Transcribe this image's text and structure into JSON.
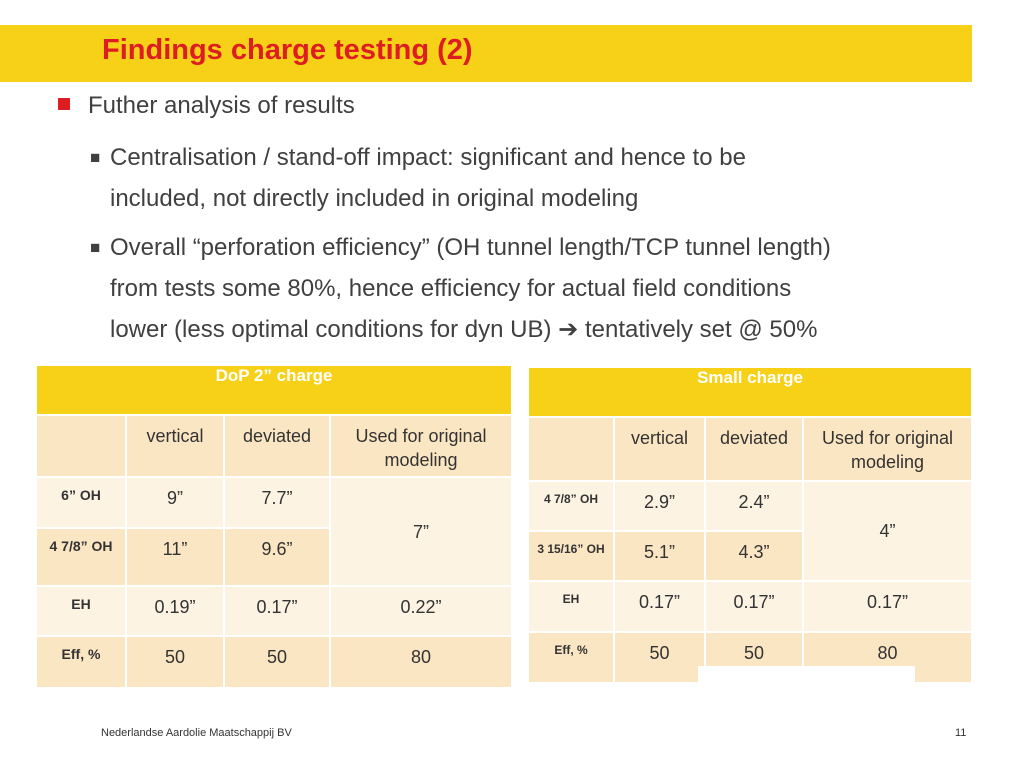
{
  "title": "Findings charge testing (2)",
  "bullet1": "Futher analysis of results",
  "sub_bullets": [
    "Centralisation / stand-off impact: significant and hence to be\nincluded, not directly included in original modeling",
    "Overall “perforation efficiency” (OH tunnel length/TCP tunnel length)\nfrom tests some 80%, hence efficiency for actual field conditions\nlower (less optimal conditions for dyn UB) ➔ tentatively set @ 50%"
  ],
  "bullet_marker": "■",
  "tables": [
    {
      "heading": "DoP 2” charge",
      "columns": [
        "",
        "vertical",
        "deviated",
        "Used for original modeling"
      ],
      "rows": [
        {
          "label": "6” OH",
          "vertical": "9”",
          "deviated": "7.7”"
        },
        {
          "label": "4 7/8” OH",
          "vertical": "11”",
          "deviated": "9.6”"
        },
        {
          "label": "EH",
          "vertical": "0.19”",
          "deviated": "0.17”",
          "original": "0.22”"
        },
        {
          "label": "Eff, %",
          "vertical": "50",
          "deviated": "50",
          "original": "80"
        }
      ],
      "merged_original": "7”"
    },
    {
      "heading": "Small charge",
      "columns": [
        "",
        "vertical",
        "deviated",
        "Used for original modeling"
      ],
      "rows": [
        {
          "label": "4 7/8” OH",
          "vertical": "2.9”",
          "deviated": "2.4”"
        },
        {
          "label": "3 15/16” OH",
          "vertical": "5.1”",
          "deviated": "4.3”"
        },
        {
          "label": "EH",
          "vertical": "0.17”",
          "deviated": "0.17”",
          "original": "0.17”"
        },
        {
          "label": "Eff, %",
          "vertical": "50",
          "deviated": "50",
          "original": "80"
        }
      ],
      "merged_original": "4”"
    }
  ],
  "footer": "Nederlandse Aardolie Maatschappij BV",
  "page_number": "11",
  "colors": {
    "accent_yellow": "#f7d117",
    "title_red": "#dd1d21",
    "cell_dark": "#fbe6c3",
    "cell_light": "#fdf3e3"
  }
}
